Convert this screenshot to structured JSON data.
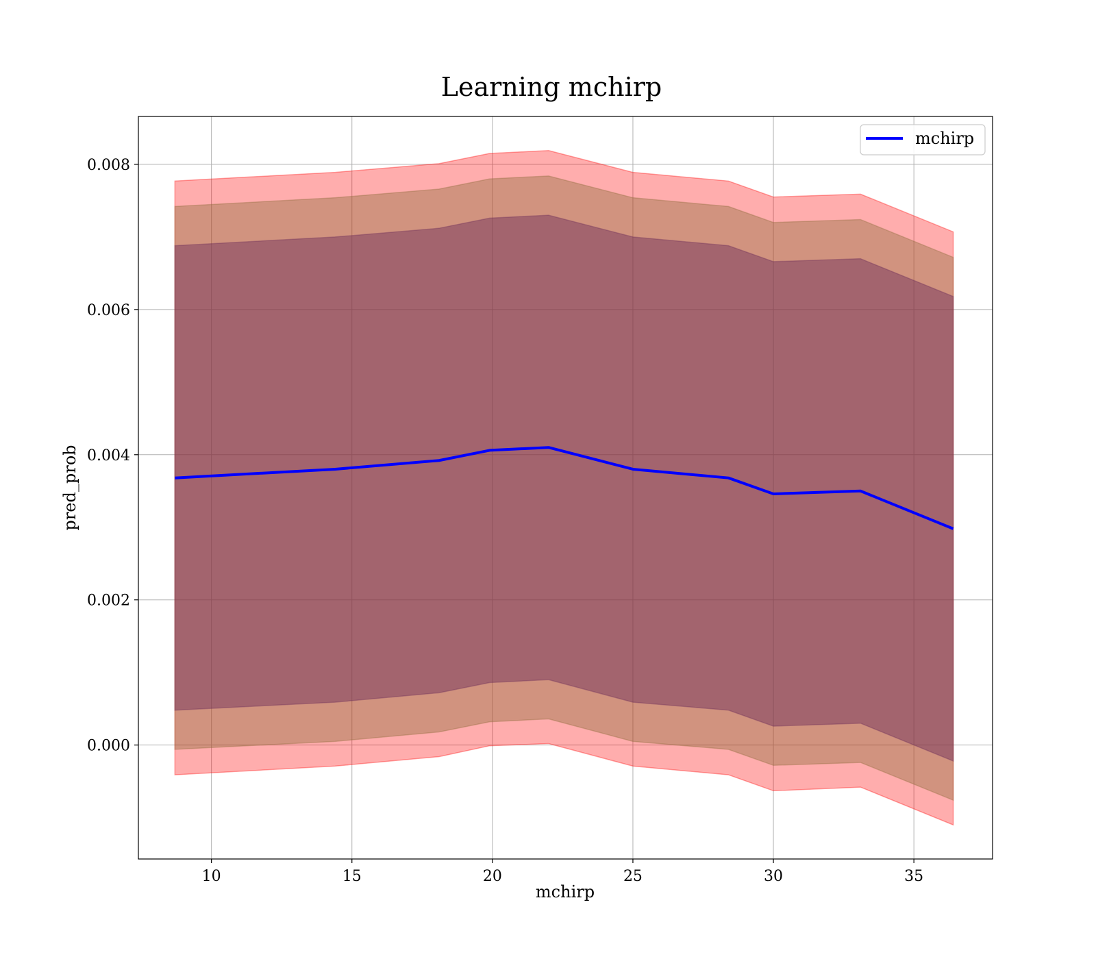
{
  "chart_data": {
    "type": "line",
    "title": "Learning mchirp",
    "xlabel": "mchirp",
    "ylabel": "pred_prob",
    "xlim": [
      7.4,
      37.8
    ],
    "ylim": [
      -0.00157,
      0.00866
    ],
    "xticks": [
      10,
      15,
      20,
      25,
      30,
      35
    ],
    "yticks": [
      0.0,
      0.002,
      0.004,
      0.006,
      0.008
    ],
    "ytick_labels": [
      "0.000",
      "0.002",
      "0.004",
      "0.006",
      "0.008"
    ],
    "grid": true,
    "legend": {
      "position": "top-right",
      "entries": [
        "mchirp"
      ]
    },
    "x": [
      8.7,
      14.4,
      18.1,
      19.9,
      22.0,
      25.0,
      28.4,
      30.0,
      33.1,
      36.4
    ],
    "series": [
      {
        "name": "mchirp",
        "color": "#0000ff",
        "values": [
          0.00368,
          0.0038,
          0.00392,
          0.00406,
          0.0041,
          0.0038,
          0.00368,
          0.00346,
          0.0035,
          0.00298
        ]
      }
    ],
    "bands": [
      {
        "color": "#ff0000",
        "opacity": 0.32,
        "lower": [
          -0.00041,
          -0.00029,
          -0.00016,
          -1e-05,
          2e-05,
          -0.00029,
          -0.00041,
          -0.00063,
          -0.00058,
          -0.0011
        ],
        "upper": [
          0.00777,
          0.00789,
          0.00801,
          0.00815,
          0.00819,
          0.00789,
          0.00777,
          0.00755,
          0.00759,
          0.00707
        ]
      },
      {
        "color": "#8b6b3a",
        "opacity": 0.4,
        "lower": [
          -6e-05,
          5e-05,
          0.00018,
          0.00032,
          0.00036,
          5e-05,
          -6e-05,
          -0.00028,
          -0.00024,
          -0.00076
        ],
        "upper": [
          0.00742,
          0.00754,
          0.00766,
          0.0078,
          0.00784,
          0.00754,
          0.00742,
          0.0072,
          0.00724,
          0.00672
        ]
      },
      {
        "color": "#6a2c5a",
        "opacity": 0.45,
        "lower": [
          0.00048,
          0.00059,
          0.00072,
          0.00086,
          0.0009,
          0.00059,
          0.00048,
          0.00026,
          0.0003,
          -0.00022
        ],
        "upper": [
          0.00688,
          0.007,
          0.00712,
          0.00726,
          0.0073,
          0.007,
          0.00688,
          0.00666,
          0.0067,
          0.00618
        ]
      }
    ]
  }
}
